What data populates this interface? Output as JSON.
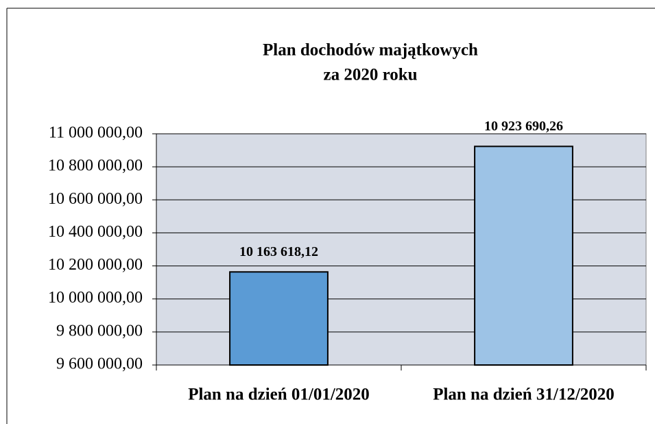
{
  "chart_data": {
    "type": "bar",
    "title": [
      "Plan dochodów majątkowych",
      "za 2020 roku"
    ],
    "categories": [
      "Plan na dzień 01/01/2020",
      "Plan na dzień 31/12/2020"
    ],
    "values": [
      10163618.12,
      10923690.26
    ],
    "value_labels": [
      "10 163 618,12",
      "10 923 690,26"
    ],
    "colors": [
      "#5b9bd5",
      "#9dc3e6"
    ],
    "ylim": [
      9600000,
      11000000
    ],
    "yticks": [
      {
        "value": 9600000,
        "label": "9 600 000,00"
      },
      {
        "value": 9800000,
        "label": "9 800 000,00"
      },
      {
        "value": 10000000,
        "label": "10 000 000,00"
      },
      {
        "value": 10200000,
        "label": "10 200 000,00"
      },
      {
        "value": 10400000,
        "label": "10 400 000,00"
      },
      {
        "value": 10600000,
        "label": "10 600 000,00"
      },
      {
        "value": 10800000,
        "label": "10 800 000,00"
      },
      {
        "value": 11000000,
        "label": "11 000 000,00"
      }
    ],
    "grid": true
  }
}
